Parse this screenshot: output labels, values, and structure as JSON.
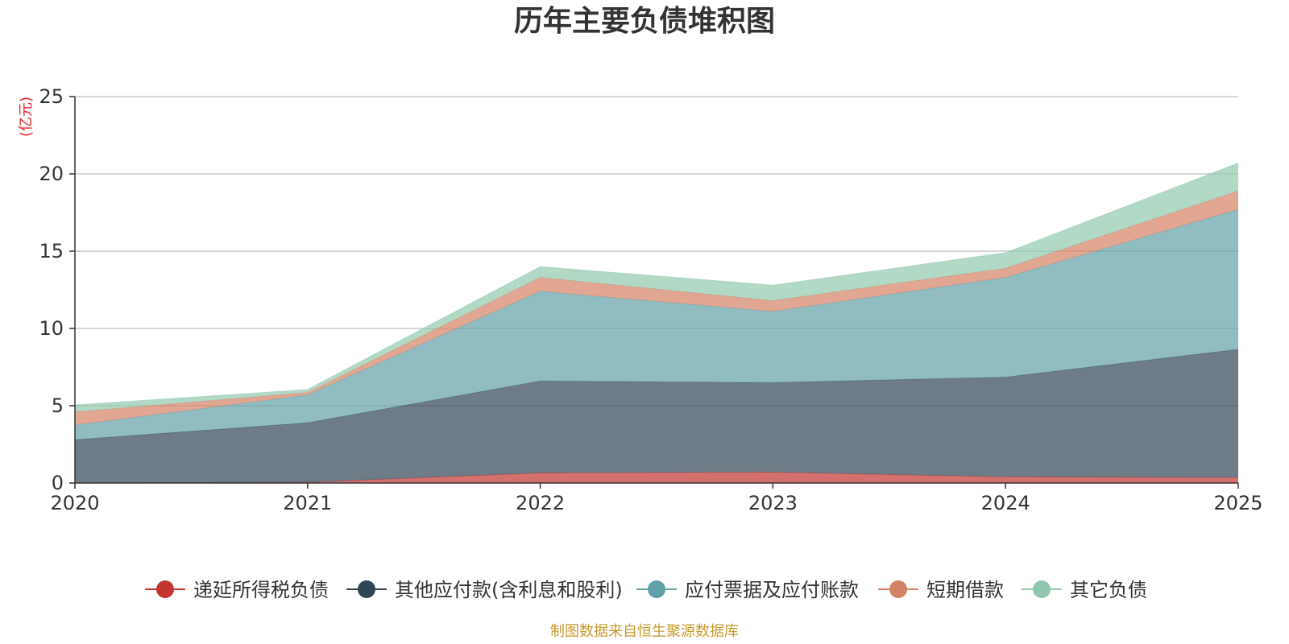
{
  "chart_data": {
    "type": "area",
    "stacked": true,
    "title": "历年主要负债堆积图",
    "y_unit": "(亿元)",
    "source": "制图数据来自恒生聚源数据库",
    "x": [
      "2020",
      "2021",
      "2022",
      "2023",
      "2024",
      "2025"
    ],
    "ylim": [
      0,
      25
    ],
    "yticks": [
      0,
      5,
      10,
      15,
      20,
      25
    ],
    "grid": true,
    "legend_position": "bottom",
    "series": [
      {
        "name": "递延所得税负债",
        "color": "#c23531",
        "values": [
          0,
          0.05,
          0.65,
          0.7,
          0.4,
          0.35
        ]
      },
      {
        "name": "其他应付款(含利息和股利)",
        "color": "#2f4554",
        "values": [
          2.8,
          3.85,
          5.95,
          5.8,
          6.45,
          8.3
        ]
      },
      {
        "name": "应付票据及应付账款",
        "color": "#61a0a8",
        "values": [
          0.95,
          1.8,
          5.8,
          4.6,
          6.45,
          9.05
        ]
      },
      {
        "name": "短期借款",
        "color": "#d48265",
        "values": [
          0.85,
          0.15,
          0.9,
          0.7,
          0.6,
          1.2
        ]
      },
      {
        "name": "其它负债",
        "color": "#91c7ae",
        "values": [
          0.45,
          0.2,
          0.7,
          1.0,
          1.0,
          1.8
        ]
      }
    ]
  }
}
